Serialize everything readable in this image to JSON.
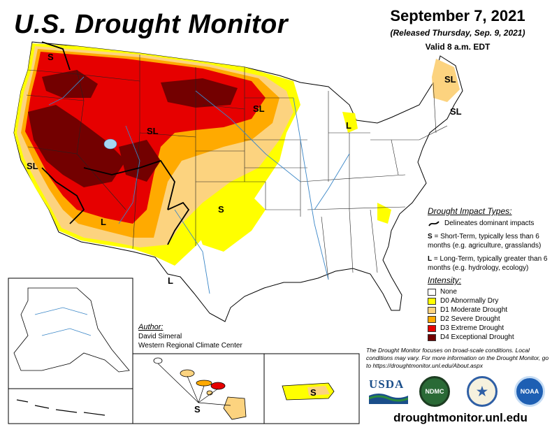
{
  "header": {
    "title": "U.S. Drought Monitor",
    "date": "September 7, 2021",
    "released": "(Released Thursday, Sep. 9, 2021)",
    "valid": "Valid 8 a.m. EDT"
  },
  "impact_types": {
    "heading": "Drought Impact Types:",
    "delineates": "Delineates dominant impacts",
    "short_term_key": "S",
    "short_term_text": " = Short-Term, typically less than 6 months (e.g. agriculture, grasslands)",
    "long_term_key": "L",
    "long_term_text": " = Long-Term, typically greater than 6 months (e.g. hydrology, ecology)"
  },
  "legend": {
    "heading": "Intensity:",
    "items": [
      {
        "label": "None",
        "color": "#ffffff"
      },
      {
        "label": "D0 Abnormally Dry",
        "color": "#ffff00"
      },
      {
        "label": "D1 Moderate Drought",
        "color": "#fcd37f"
      },
      {
        "label": "D2 Severe Drought",
        "color": "#ffaa00"
      },
      {
        "label": "D3 Extreme Drought",
        "color": "#e60000"
      },
      {
        "label": "D4 Exceptional Drought",
        "color": "#730000"
      }
    ]
  },
  "author": {
    "heading": "Author:",
    "name": "David Simeral",
    "org": "Western Regional Climate Center"
  },
  "focus_note": "The Drought Monitor focuses on broad-scale conditions. Local conditions may vary. For more information on the Drought Monitor, go to https://droughtmonitor.unl.edu/About.aspx",
  "logos": {
    "usda": "USDA",
    "ndmc": "NDMC",
    "noaa": "NOAA"
  },
  "map_labels": {
    "s_pnw": "S",
    "sl_mt": "SL",
    "sl_ca": "SL",
    "l_az": "L",
    "s_tx": "S",
    "sl_mn": "SL",
    "l_mi": "L",
    "sl_me": "SL",
    "sl_ne": "SL",
    "l_nm": "L",
    "s_hi": "S",
    "s_pr": "S"
  },
  "url": "droughtmonitor.unl.edu"
}
